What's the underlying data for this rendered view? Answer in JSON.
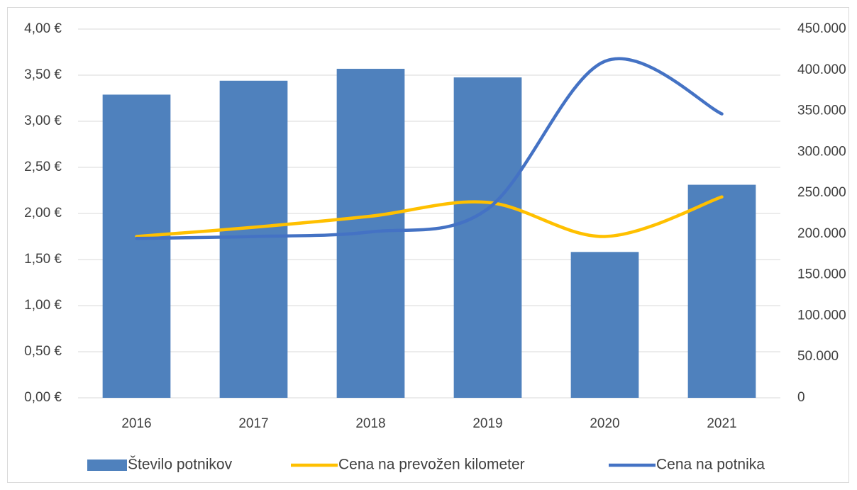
{
  "chart_data": {
    "type": "bar-line",
    "categories": [
      "2016",
      "2017",
      "2018",
      "2019",
      "2020",
      "2021"
    ],
    "series": [
      {
        "name": "Število potnikov",
        "type": "bar",
        "axis": "y2",
        "color": "#4f81bd",
        "values": [
          370000,
          387000,
          401500,
          391000,
          178000,
          260000
        ]
      },
      {
        "name": "Cena na prevožen kilometer",
        "type": "line",
        "axis": "y",
        "color": "#ffc000",
        "values": [
          1.75,
          1.85,
          1.97,
          2.12,
          1.75,
          2.18
        ]
      },
      {
        "name": "Cena na potnika",
        "type": "line",
        "axis": "y",
        "color": "#4472c4",
        "values": [
          1.73,
          1.75,
          1.8,
          2.05,
          3.65,
          3.08
        ]
      }
    ],
    "ylim": [
      0,
      4
    ],
    "yticks": [
      {
        "value": 0,
        "label": "0,00 €"
      },
      {
        "value": 0.5,
        "label": "0,50 €"
      },
      {
        "value": 1,
        "label": "1,00 €"
      },
      {
        "value": 1.5,
        "label": "1,50 €"
      },
      {
        "value": 2,
        "label": "2,00 €"
      },
      {
        "value": 2.5,
        "label": "2,50 €"
      },
      {
        "value": 3,
        "label": "3,00 €"
      },
      {
        "value": 3.5,
        "label": "3,50 €"
      },
      {
        "value": 4,
        "label": "4,00 €"
      }
    ],
    "y2lim": [
      0,
      450000
    ],
    "y2ticks": [
      0,
      {
        "value": 50000,
        "label": "50.000"
      },
      {
        "value": 100000,
        "label": "100.000"
      },
      {
        "value": 150000,
        "label": "150.000"
      },
      {
        "value": 200000,
        "label": "200.000"
      },
      {
        "value": 250000,
        "label": "250.000"
      },
      {
        "value": 300000,
        "label": "300.000"
      },
      {
        "value": 350000,
        "label": "350.000"
      },
      {
        "value": 400000,
        "label": "400.000"
      },
      {
        "value": 450000,
        "label": "450.000"
      }
    ],
    "grid": true,
    "smooth": true,
    "legend": "bottom"
  }
}
